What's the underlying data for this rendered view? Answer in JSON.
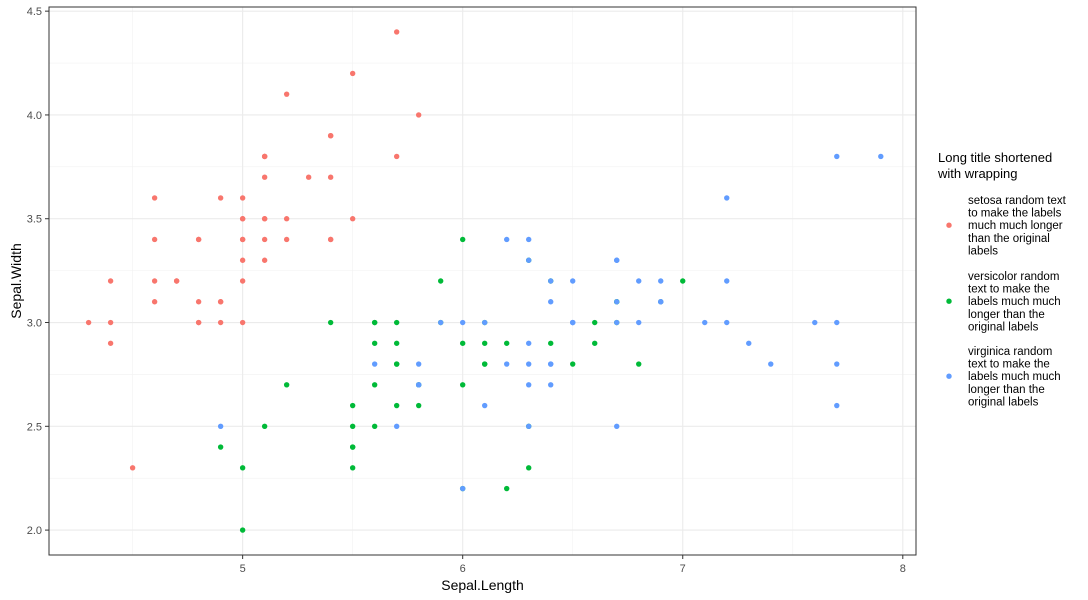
{
  "chart_data": {
    "type": "scatter",
    "xlabel": "Sepal.Length",
    "ylabel": "Sepal.Width",
    "xlim": [
      4.12,
      8.06
    ],
    "ylim": [
      1.88,
      4.52
    ],
    "x_ticks": [
      5,
      6,
      7,
      8
    ],
    "x_tick_labels": [
      "5",
      "6",
      "7",
      "8"
    ],
    "y_ticks": [
      2.0,
      2.5,
      3.0,
      3.5,
      4.0,
      4.5
    ],
    "y_tick_labels": [
      "2.0",
      "2.5",
      "3.0",
      "3.5",
      "4.0",
      "4.5"
    ],
    "grid": true,
    "legend_position": "right",
    "legend_title": [
      "Long title shortened",
      "with wrapping"
    ],
    "series": [
      {
        "name": "setosa random text to make the labels much much longer than the original labels",
        "label_lines": [
          "setosa random text",
          "to make the labels",
          "much much longer",
          "than the original",
          "labels"
        ],
        "color": "#F8766D",
        "points": [
          [
            5.1,
            3.5
          ],
          [
            4.9,
            3.0
          ],
          [
            4.7,
            3.2
          ],
          [
            4.6,
            3.1
          ],
          [
            5.0,
            3.6
          ],
          [
            5.4,
            3.9
          ],
          [
            4.6,
            3.4
          ],
          [
            5.0,
            3.4
          ],
          [
            4.4,
            2.9
          ],
          [
            4.9,
            3.1
          ],
          [
            5.4,
            3.7
          ],
          [
            4.8,
            3.4
          ],
          [
            4.8,
            3.0
          ],
          [
            4.3,
            3.0
          ],
          [
            5.8,
            4.0
          ],
          [
            5.7,
            4.4
          ],
          [
            5.4,
            3.9
          ],
          [
            5.1,
            3.5
          ],
          [
            5.7,
            3.8
          ],
          [
            5.1,
            3.8
          ],
          [
            5.4,
            3.4
          ],
          [
            5.1,
            3.7
          ],
          [
            4.6,
            3.6
          ],
          [
            5.1,
            3.3
          ],
          [
            4.8,
            3.4
          ],
          [
            5.0,
            3.0
          ],
          [
            5.0,
            3.4
          ],
          [
            5.2,
            3.5
          ],
          [
            5.2,
            3.4
          ],
          [
            4.7,
            3.2
          ],
          [
            4.8,
            3.1
          ],
          [
            5.4,
            3.4
          ],
          [
            5.2,
            4.1
          ],
          [
            5.5,
            4.2
          ],
          [
            4.9,
            3.1
          ],
          [
            5.0,
            3.2
          ],
          [
            5.5,
            3.5
          ],
          [
            4.9,
            3.6
          ],
          [
            4.4,
            3.0
          ],
          [
            5.1,
            3.4
          ],
          [
            5.0,
            3.5
          ],
          [
            4.5,
            2.3
          ],
          [
            4.4,
            3.2
          ],
          [
            5.0,
            3.5
          ],
          [
            5.1,
            3.8
          ],
          [
            4.8,
            3.0
          ],
          [
            5.1,
            3.8
          ],
          [
            4.6,
            3.2
          ],
          [
            5.3,
            3.7
          ],
          [
            5.0,
            3.3
          ]
        ]
      },
      {
        "name": "versicolor random text to make the labels much much longer than the original labels",
        "label_lines": [
          "versicolor random",
          "text to make the",
          "labels much much",
          "longer than the",
          "original labels"
        ],
        "color": "#00BA38",
        "points": [
          [
            7.0,
            3.2
          ],
          [
            6.4,
            3.2
          ],
          [
            6.9,
            3.1
          ],
          [
            5.5,
            2.3
          ],
          [
            6.5,
            2.8
          ],
          [
            5.7,
            2.8
          ],
          [
            6.3,
            3.3
          ],
          [
            4.9,
            2.4
          ],
          [
            6.6,
            2.9
          ],
          [
            5.2,
            2.7
          ],
          [
            5.0,
            2.0
          ],
          [
            5.9,
            3.0
          ],
          [
            6.0,
            2.2
          ],
          [
            6.1,
            2.9
          ],
          [
            5.6,
            2.9
          ],
          [
            6.7,
            3.1
          ],
          [
            5.6,
            3.0
          ],
          [
            5.8,
            2.7
          ],
          [
            6.2,
            2.2
          ],
          [
            5.6,
            2.5
          ],
          [
            5.9,
            3.2
          ],
          [
            6.1,
            2.8
          ],
          [
            6.3,
            2.5
          ],
          [
            6.1,
            2.8
          ],
          [
            6.4,
            2.9
          ],
          [
            6.6,
            3.0
          ],
          [
            6.8,
            2.8
          ],
          [
            6.7,
            3.0
          ],
          [
            6.0,
            2.9
          ],
          [
            5.7,
            2.6
          ],
          [
            5.5,
            2.4
          ],
          [
            5.5,
            2.4
          ],
          [
            5.8,
            2.7
          ],
          [
            6.0,
            2.7
          ],
          [
            5.4,
            3.0
          ],
          [
            6.0,
            3.4
          ],
          [
            6.7,
            3.1
          ],
          [
            6.3,
            2.3
          ],
          [
            5.6,
            3.0
          ],
          [
            5.5,
            2.5
          ],
          [
            5.5,
            2.6
          ],
          [
            6.1,
            3.0
          ],
          [
            5.8,
            2.6
          ],
          [
            5.0,
            2.3
          ],
          [
            5.6,
            2.7
          ],
          [
            5.7,
            3.0
          ],
          [
            5.7,
            2.9
          ],
          [
            6.2,
            2.9
          ],
          [
            5.1,
            2.5
          ],
          [
            5.7,
            2.8
          ]
        ]
      },
      {
        "name": "virginica random text to make the labels much much longer than the original labels",
        "label_lines": [
          "virginica random",
          "text to make the",
          "labels much much",
          "longer than the",
          "original labels"
        ],
        "color": "#619CFF",
        "points": [
          [
            6.3,
            3.3
          ],
          [
            5.8,
            2.7
          ],
          [
            7.1,
            3.0
          ],
          [
            6.3,
            2.9
          ],
          [
            6.5,
            3.0
          ],
          [
            7.6,
            3.0
          ],
          [
            4.9,
            2.5
          ],
          [
            7.3,
            2.9
          ],
          [
            6.7,
            2.5
          ],
          [
            7.2,
            3.6
          ],
          [
            6.5,
            3.2
          ],
          [
            6.4,
            2.7
          ],
          [
            6.8,
            3.0
          ],
          [
            5.7,
            2.5
          ],
          [
            5.8,
            2.8
          ],
          [
            6.4,
            3.2
          ],
          [
            6.5,
            3.0
          ],
          [
            7.7,
            3.8
          ],
          [
            7.7,
            2.6
          ],
          [
            6.0,
            2.2
          ],
          [
            6.9,
            3.2
          ],
          [
            5.6,
            2.8
          ],
          [
            7.7,
            2.8
          ],
          [
            6.3,
            2.7
          ],
          [
            6.7,
            3.3
          ],
          [
            7.2,
            3.2
          ],
          [
            6.2,
            2.8
          ],
          [
            6.1,
            3.0
          ],
          [
            6.4,
            2.8
          ],
          [
            7.2,
            3.0
          ],
          [
            7.4,
            2.8
          ],
          [
            7.9,
            3.8
          ],
          [
            6.4,
            2.8
          ],
          [
            6.3,
            2.8
          ],
          [
            6.1,
            2.6
          ],
          [
            7.7,
            3.0
          ],
          [
            6.3,
            3.4
          ],
          [
            6.4,
            3.1
          ],
          [
            6.0,
            3.0
          ],
          [
            6.9,
            3.1
          ],
          [
            6.7,
            3.1
          ],
          [
            6.9,
            3.1
          ],
          [
            5.8,
            2.7
          ],
          [
            6.8,
            3.2
          ],
          [
            6.7,
            3.3
          ],
          [
            6.7,
            3.0
          ],
          [
            6.3,
            2.5
          ],
          [
            6.5,
            3.0
          ],
          [
            6.2,
            3.4
          ],
          [
            5.9,
            3.0
          ]
        ]
      }
    ]
  }
}
